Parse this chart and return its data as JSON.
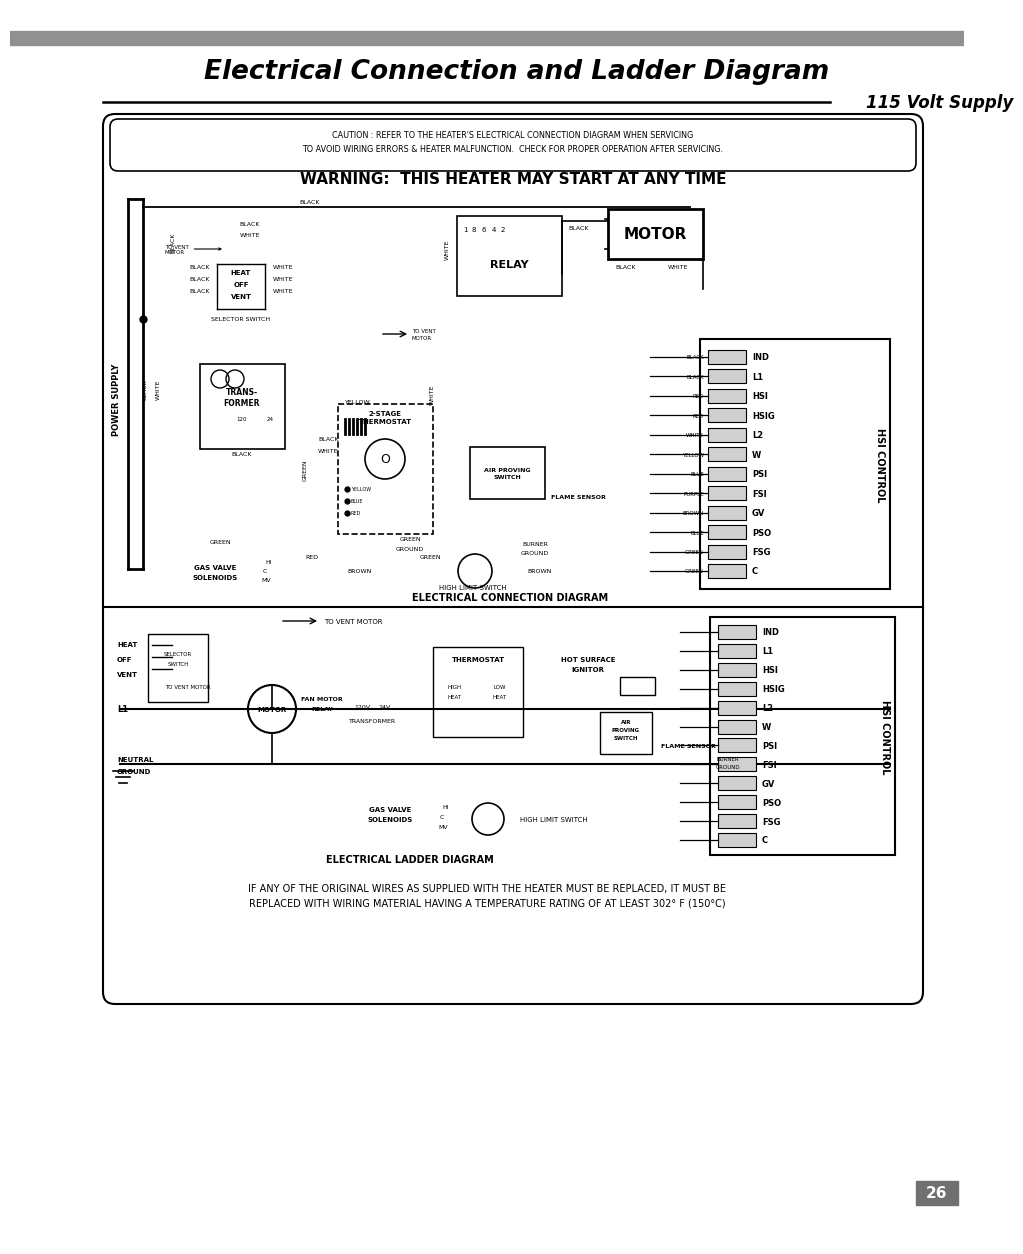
{
  "title": "Electrical Connection and Ladder Diagram",
  "subtitle": "115 Volt Supply",
  "page_number": "26",
  "bg_color": "#ffffff",
  "header_bar_color": "#909090",
  "caution_text": "CAUTION : REFER TO THE HEATER'S ELECTRICAL CONNECTION DIAGRAM WHEN SERVICING\nTO AVOID WIRING ERRORS & HEATER MALFUNCTION.  CHECK FOR PROPER OPERATION AFTER SERVICING.",
  "warning_text": "WARNING:  THIS HEATER MAY START AT ANY TIME",
  "footer_text": "IF ANY OF THE ORIGINAL WIRES AS SUPPLIED WITH THE HEATER MUST BE REPLACED, IT MUST BE\nREPLACED WITH WIRING MATERIAL HAVING A TEMPERATURE RATING OF AT LEAST 302° F (150°C)",
  "elec_diagram_label": "ELECTRICAL CONNECTION DIAGRAM",
  "ladder_diagram_label": "ELECTRICAL LADDER DIAGRAM",
  "power_supply_label": "POWER SUPPLY",
  "hsi_control_label": "HSI CONTROL",
  "hsi_labels": [
    "IND",
    "L1",
    "HSI",
    "HSIG",
    "L2",
    "W",
    "PSI",
    "FSI",
    "GV",
    "PSO",
    "FSG",
    "C"
  ],
  "hsi_wire_colors": [
    "BLACK",
    "BLACK",
    "RED",
    "RED",
    "WHITE",
    "YELLOW",
    "BLUE",
    "PURPLE",
    "BROWN",
    "BLUE",
    "GREEN",
    "GREEN"
  ]
}
